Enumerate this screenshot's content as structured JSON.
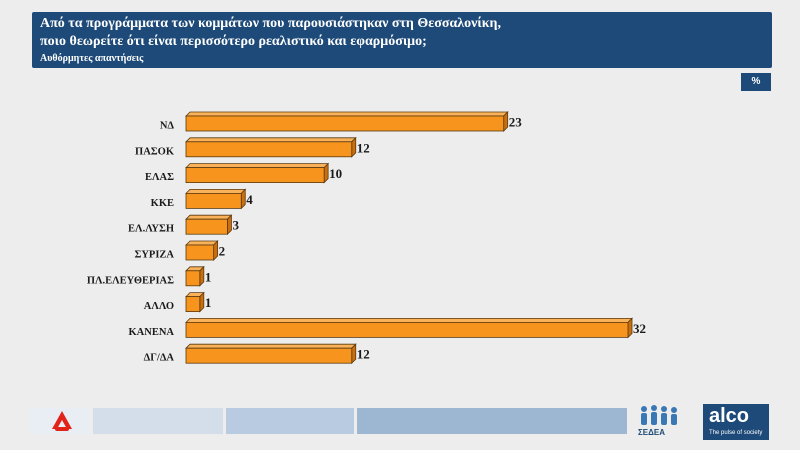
{
  "header": {
    "question_line1": "Από τα προγράμματα των κομμάτων που παρουσιάστηκαν στη Θεσσαλονίκη,",
    "question_line2": "ποιο θεωρείτε ότι είναι περισσότερο ρεαλιστικό και εφαρμόσιμο;",
    "subtitle": "Αυθόρμητες απαντήσεις"
  },
  "unit_badge": "%",
  "chart_data": {
    "type": "bar",
    "orientation": "horizontal",
    "categories": [
      "ΝΔ",
      "ΠΑΣΟΚ",
      "ΕΛΑΣ",
      "ΚΚΕ",
      "ΕΛ.ΛΥΣΗ",
      "ΣΥΡΙΖΑ",
      "ΠΛ.ΕΛΕΥΘΕΡΙΑΣ",
      "ΑΛΛΟ",
      "ΚΑΝΕΝΑ",
      "ΔΓ/ΔΑ"
    ],
    "values": [
      23,
      12,
      10,
      4,
      3,
      2,
      1,
      1,
      32,
      12
    ],
    "xlim": [
      0,
      32
    ],
    "bar_color": "#f7941d",
    "grid": false,
    "legend": "none"
  },
  "footer": {
    "sedea_label": "ΣΕΔΕΑ",
    "alco_name": "alco",
    "alco_tagline": "The pulse of society",
    "colors": {
      "alpha_red": "#e2231a",
      "alco_blue": "#1d4a78"
    }
  }
}
